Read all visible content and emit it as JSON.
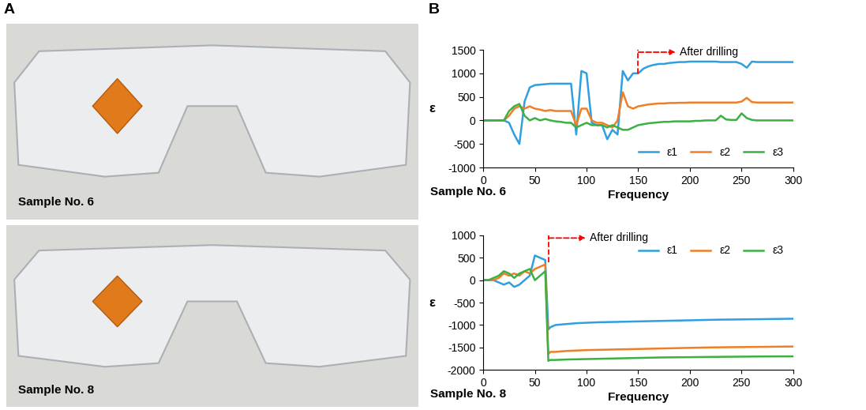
{
  "panel_labels": [
    "A",
    "B"
  ],
  "photos": [
    {
      "caption": "Sample No. 6"
    },
    {
      "caption": "Sample No. 8"
    }
  ],
  "chart_data": [
    {
      "type": "line",
      "caption": "Sample No. 6",
      "x_label": "Frequency",
      "y_label": "ε",
      "x": [
        0,
        5,
        10,
        15,
        20,
        25,
        30,
        35,
        40,
        45,
        50,
        55,
        60,
        65,
        70,
        75,
        80,
        85,
        90,
        95,
        100,
        105,
        110,
        115,
        120,
        125,
        130,
        135,
        140,
        145,
        150,
        155,
        160,
        165,
        170,
        175,
        180,
        185,
        190,
        195,
        200,
        205,
        210,
        215,
        220,
        225,
        230,
        235,
        240,
        245,
        250,
        255,
        260,
        265,
        270,
        275,
        280,
        285,
        290,
        295,
        300
      ],
      "series": [
        {
          "name": "ε1",
          "color": "#2f9fe0",
          "values": [
            0,
            0,
            0,
            0,
            0,
            -50,
            -300,
            -500,
            400,
            700,
            750,
            760,
            770,
            780,
            780,
            780,
            780,
            780,
            -300,
            1050,
            1000,
            -50,
            -100,
            -100,
            -400,
            -200,
            -300,
            1050,
            850,
            1000,
            1000,
            1100,
            1150,
            1180,
            1200,
            1200,
            1220,
            1230,
            1240,
            1240,
            1250,
            1250,
            1250,
            1250,
            1250,
            1250,
            1240,
            1240,
            1240,
            1240,
            1200,
            1120,
            1250,
            1240,
            1240,
            1240,
            1240,
            1240,
            1240,
            1240,
            1240
          ]
        },
        {
          "name": "ε2",
          "color": "#f07e26",
          "values": [
            0,
            0,
            0,
            0,
            0,
            100,
            250,
            300,
            250,
            300,
            250,
            230,
            200,
            220,
            200,
            200,
            200,
            200,
            -100,
            250,
            250,
            0,
            -50,
            -50,
            -100,
            -150,
            0,
            600,
            300,
            250,
            300,
            320,
            340,
            350,
            360,
            360,
            370,
            370,
            375,
            375,
            380,
            380,
            380,
            380,
            380,
            380,
            380,
            380,
            380,
            380,
            400,
            480,
            390,
            380,
            380,
            380,
            380,
            380,
            380,
            380,
            380
          ]
        },
        {
          "name": "ε3",
          "color": "#3cb043",
          "values": [
            0,
            0,
            0,
            0,
            0,
            200,
            300,
            350,
            100,
            0,
            50,
            0,
            30,
            0,
            -20,
            -30,
            -50,
            -50,
            -150,
            -100,
            -50,
            -100,
            -100,
            -100,
            -150,
            -100,
            -150,
            -200,
            -200,
            -150,
            -100,
            -80,
            -60,
            -50,
            -40,
            -30,
            -30,
            -20,
            -20,
            -20,
            -20,
            -10,
            -10,
            0,
            0,
            0,
            100,
            20,
            10,
            10,
            150,
            50,
            10,
            0,
            0,
            0,
            0,
            0,
            0,
            0,
            0
          ]
        }
      ],
      "xlim": [
        0,
        300
      ],
      "xticks": [
        0,
        50,
        100,
        150,
        200,
        250,
        300
      ],
      "ylim": [
        -1000,
        1500
      ],
      "yticks": [
        -1000,
        -500,
        0,
        500,
        1000,
        1500
      ],
      "grid": false,
      "legend": "lower right",
      "annotation": {
        "text": "After drilling",
        "x": 150
      }
    },
    {
      "type": "line",
      "caption": "Sample No. 8",
      "x_label": "Frequency",
      "y_label": "ε",
      "x": [
        0,
        5,
        10,
        15,
        20,
        25,
        30,
        35,
        40,
        45,
        50,
        55,
        60,
        63,
        65,
        70,
        80,
        90,
        100,
        110,
        120,
        130,
        140,
        150,
        160,
        170,
        180,
        190,
        200,
        210,
        220,
        230,
        240,
        250,
        260,
        270,
        280,
        290,
        300
      ],
      "series": [
        {
          "name": "ε1",
          "color": "#2f9fe0",
          "values": [
            0,
            0,
            0,
            -50,
            -100,
            -50,
            -150,
            -100,
            0,
            100,
            550,
            500,
            450,
            -1100,
            -1050,
            -1000,
            -980,
            -960,
            -950,
            -940,
            -935,
            -930,
            -925,
            -920,
            -915,
            -910,
            -905,
            -900,
            -895,
            -890,
            -885,
            -880,
            -878,
            -875,
            -872,
            -870,
            -866,
            -863,
            -860
          ]
        },
        {
          "name": "ε2",
          "color": "#f07e26",
          "values": [
            0,
            0,
            0,
            50,
            150,
            100,
            150,
            100,
            200,
            150,
            250,
            300,
            350,
            -1650,
            -1600,
            -1600,
            -1580,
            -1570,
            -1560,
            -1555,
            -1550,
            -1545,
            -1540,
            -1535,
            -1530,
            -1525,
            -1520,
            -1515,
            -1510,
            -1505,
            -1500,
            -1498,
            -1495,
            -1492,
            -1490,
            -1488,
            -1485,
            -1482,
            -1480
          ]
        },
        {
          "name": "ε3",
          "color": "#3cb043",
          "values": [
            0,
            0,
            50,
            100,
            200,
            150,
            50,
            150,
            200,
            250,
            0,
            100,
            200,
            -1800,
            -1780,
            -1780,
            -1770,
            -1765,
            -1760,
            -1755,
            -1750,
            -1745,
            -1740,
            -1735,
            -1730,
            -1725,
            -1722,
            -1720,
            -1718,
            -1715,
            -1712,
            -1710,
            -1708,
            -1706,
            -1704,
            -1702,
            -1701,
            -1700,
            -1700
          ]
        }
      ],
      "xlim": [
        0,
        300
      ],
      "xticks": [
        0,
        50,
        100,
        150,
        200,
        250,
        300
      ],
      "ylim": [
        -2000,
        1000
      ],
      "yticks": [
        -2000,
        -1500,
        -1000,
        -500,
        0,
        500,
        1000
      ],
      "grid": false,
      "legend": "upper right",
      "annotation": {
        "text": "After drilling",
        "x": 63
      }
    }
  ]
}
